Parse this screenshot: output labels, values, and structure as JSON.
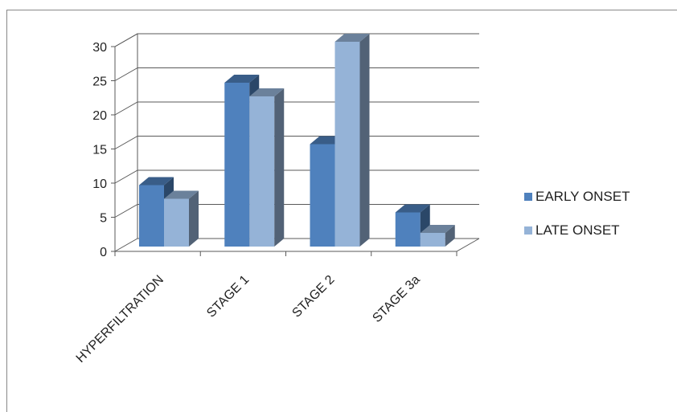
{
  "chart_data": {
    "type": "bar",
    "categories": [
      "HYPERFILTRATION",
      "STAGE 1",
      "STAGE 2",
      "STAGE 3a"
    ],
    "series": [
      {
        "name": "EARLY ONSET",
        "values": [
          9,
          24,
          15,
          5
        ],
        "color": "#4F81BD"
      },
      {
        "name": "LATE ONSET",
        "values": [
          7,
          22,
          30,
          2
        ],
        "color": "#95B3D7"
      }
    ],
    "yticks": [
      "0",
      "5",
      "10",
      "15",
      "20",
      "25",
      "30"
    ],
    "ylim": [
      0,
      30
    ],
    "grid": true,
    "legend_position": "right",
    "style": "3d-clustered-column"
  }
}
